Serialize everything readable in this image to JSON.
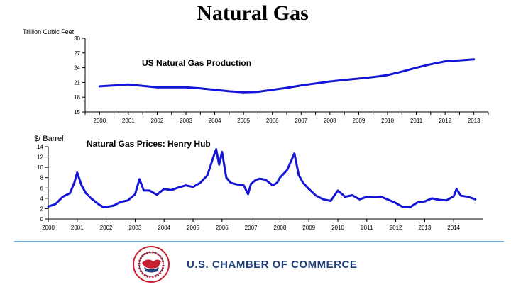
{
  "page": {
    "title": "Natural Gas",
    "footer_org": "U.S. CHAMBER OF COMMERCE",
    "seal_text": "THE CHAMBER OF COMMERCE OF THE UNITED STATES OF AMERICA",
    "colors": {
      "series": "#1515d8",
      "divider": "#6fa8d6",
      "brand": "#1f3f7a",
      "seal_red": "#c8202e"
    }
  },
  "chart_data": [
    {
      "type": "line",
      "title": "US Natural Gas Production",
      "ylabel": "Trillion Cubic Feet",
      "xlabel": "",
      "ylim": [
        15,
        30
      ],
      "yticks": [
        15,
        18,
        21,
        24,
        27,
        30
      ],
      "xlim": [
        1999.5,
        2013.5
      ],
      "xticks": [
        2000,
        2001,
        2002,
        2003,
        2004,
        2005,
        2006,
        2007,
        2008,
        2009,
        2010,
        2011,
        2012,
        2013
      ],
      "grid": false,
      "series": [
        {
          "name": "US Natural Gas Production",
          "x": [
            2000,
            2000.5,
            2001,
            2001.5,
            2002,
            2002.5,
            2003,
            2003.5,
            2004,
            2004.5,
            2005,
            2005.5,
            2006,
            2006.5,
            2007,
            2007.5,
            2008,
            2008.5,
            2009,
            2009.5,
            2010,
            2010.5,
            2011,
            2011.5,
            2012,
            2012.5,
            2013
          ],
          "values": [
            20.2,
            20.4,
            20.6,
            20.3,
            20.0,
            20.0,
            20.0,
            19.8,
            19.5,
            19.2,
            19.0,
            19.1,
            19.5,
            19.9,
            20.4,
            20.8,
            21.2,
            21.5,
            21.8,
            22.1,
            22.5,
            23.2,
            24.0,
            24.7,
            25.3,
            25.5,
            25.7
          ]
        }
      ]
    },
    {
      "type": "line",
      "title": "Natural Gas Prices: Henry Hub",
      "ylabel": "$/ Barrel",
      "xlabel": "",
      "ylim": [
        0,
        14
      ],
      "yticks": [
        0,
        2,
        4,
        6,
        8,
        10,
        12,
        14
      ],
      "xlim": [
        2000,
        2015
      ],
      "xticks": [
        2000,
        2001,
        2002,
        2003,
        2004,
        2005,
        2006,
        2007,
        2008,
        2009,
        2010,
        2011,
        2012,
        2013,
        2014
      ],
      "grid": false,
      "series": [
        {
          "name": "Henry Hub",
          "x": [
            2000.0,
            2000.25,
            2000.5,
            2000.75,
            2000.9,
            2001.0,
            2001.15,
            2001.3,
            2001.5,
            2001.75,
            2001.9,
            2002.0,
            2002.25,
            2002.5,
            2002.75,
            2003.0,
            2003.15,
            2003.3,
            2003.5,
            2003.75,
            2004.0,
            2004.25,
            2004.5,
            2004.75,
            2005.0,
            2005.25,
            2005.5,
            2005.7,
            2005.8,
            2005.9,
            2006.0,
            2006.15,
            2006.3,
            2006.5,
            2006.75,
            2006.9,
            2007.0,
            2007.15,
            2007.3,
            2007.5,
            2007.75,
            2007.9,
            2008.0,
            2008.25,
            2008.5,
            2008.65,
            2008.8,
            2009.0,
            2009.25,
            2009.5,
            2009.75,
            2010.0,
            2010.25,
            2010.5,
            2010.75,
            2011.0,
            2011.25,
            2011.5,
            2011.75,
            2012.0,
            2012.25,
            2012.5,
            2012.75,
            2013.0,
            2013.25,
            2013.5,
            2013.75,
            2014.0,
            2014.1,
            2014.25,
            2014.5,
            2014.75
          ],
          "values": [
            2.4,
            2.9,
            4.3,
            5.0,
            7.0,
            9.0,
            6.5,
            5.0,
            3.9,
            2.8,
            2.3,
            2.3,
            2.6,
            3.3,
            3.6,
            4.8,
            7.7,
            5.5,
            5.5,
            4.7,
            5.8,
            5.6,
            6.1,
            6.5,
            6.2,
            7.0,
            8.5,
            12.0,
            13.5,
            10.5,
            13.0,
            8.0,
            7.0,
            6.7,
            6.5,
            4.8,
            6.8,
            7.5,
            7.8,
            7.6,
            6.5,
            7.0,
            8.0,
            9.5,
            12.7,
            8.5,
            7.0,
            5.8,
            4.5,
            3.8,
            3.5,
            5.5,
            4.3,
            4.6,
            3.8,
            4.3,
            4.2,
            4.3,
            3.7,
            3.1,
            2.3,
            2.3,
            3.2,
            3.4,
            4.0,
            3.7,
            3.6,
            4.4,
            5.8,
            4.5,
            4.3,
            3.8
          ]
        }
      ]
    }
  ]
}
